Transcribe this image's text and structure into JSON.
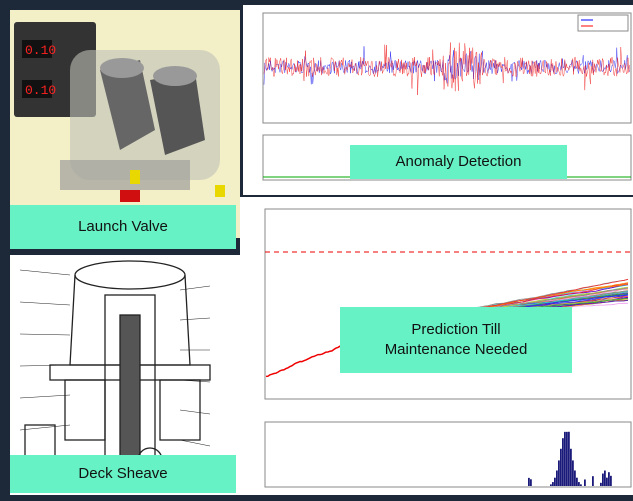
{
  "labels": {
    "launch_valve": "Launch Valve",
    "anomaly_detection": "Anomaly Detection",
    "prediction": [
      "Prediction Till",
      "Maintenance Needed"
    ],
    "deck_sheave": "Deck Sheave"
  }
}
